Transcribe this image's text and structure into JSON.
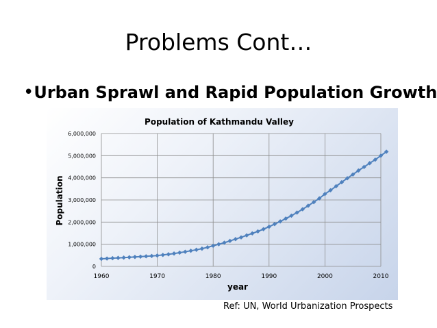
{
  "slide": {
    "title": "Problems Cont…",
    "bullet": "Urban Sprawl and Rapid Population Growth",
    "reference": "Ref: UN, World Urbanization Prospects"
  },
  "colors": {
    "series": "#4f81bd",
    "grid": "#8c8c8c"
  },
  "chart_data": {
    "type": "line",
    "title": "Population of Kathmandu Valley",
    "xlabel": "year",
    "ylabel": "Population",
    "xlim": [
      1960,
      2010
    ],
    "ylim": [
      0,
      6000000
    ],
    "xticks": [
      1960,
      1970,
      1980,
      1990,
      2000,
      2010
    ],
    "xtick_labels": [
      "1960",
      "1970",
      "1980",
      "1990",
      "2000",
      "2010"
    ],
    "yticks": [
      0,
      1000000,
      2000000,
      3000000,
      4000000,
      5000000,
      6000000
    ],
    "ytick_labels": [
      "0",
      "1,000,000",
      "2,000,000",
      "3,000,000",
      "4,000,000",
      "5,000,000",
      "6,000,000"
    ],
    "grid": true,
    "legend": "none",
    "series": [
      {
        "x": [
          1960,
          1961,
          1962,
          1963,
          1964,
          1965,
          1966,
          1967,
          1968,
          1969,
          1970,
          1971,
          1972,
          1973,
          1974,
          1975,
          1976,
          1977,
          1978,
          1979,
          1980,
          1981,
          1982,
          1983,
          1984,
          1985,
          1986,
          1987,
          1988,
          1989,
          1990,
          1991,
          1992,
          1993,
          1994,
          1995,
          1996,
          1997,
          1998,
          1999,
          2000,
          2001,
          2002,
          2003,
          2004,
          2005,
          2006,
          2007,
          2008,
          2009,
          2010,
          2011
        ],
        "y": [
          340000,
          355000,
          370000,
          383000,
          396000,
          410000,
          425000,
          440000,
          455000,
          470000,
          490000,
          515000,
          545000,
          580000,
          620000,
          660000,
          705000,
          750000,
          800000,
          860000,
          930000,
          1000000,
          1070000,
          1150000,
          1230000,
          1310000,
          1400000,
          1490000,
          1580000,
          1680000,
          1790000,
          1910000,
          2030000,
          2160000,
          2290000,
          2430000,
          2580000,
          2740000,
          2900000,
          3070000,
          3270000,
          3440000,
          3620000,
          3800000,
          3980000,
          4150000,
          4330000,
          4490000,
          4660000,
          4820000,
          5000000,
          5180000
        ]
      }
    ]
  }
}
